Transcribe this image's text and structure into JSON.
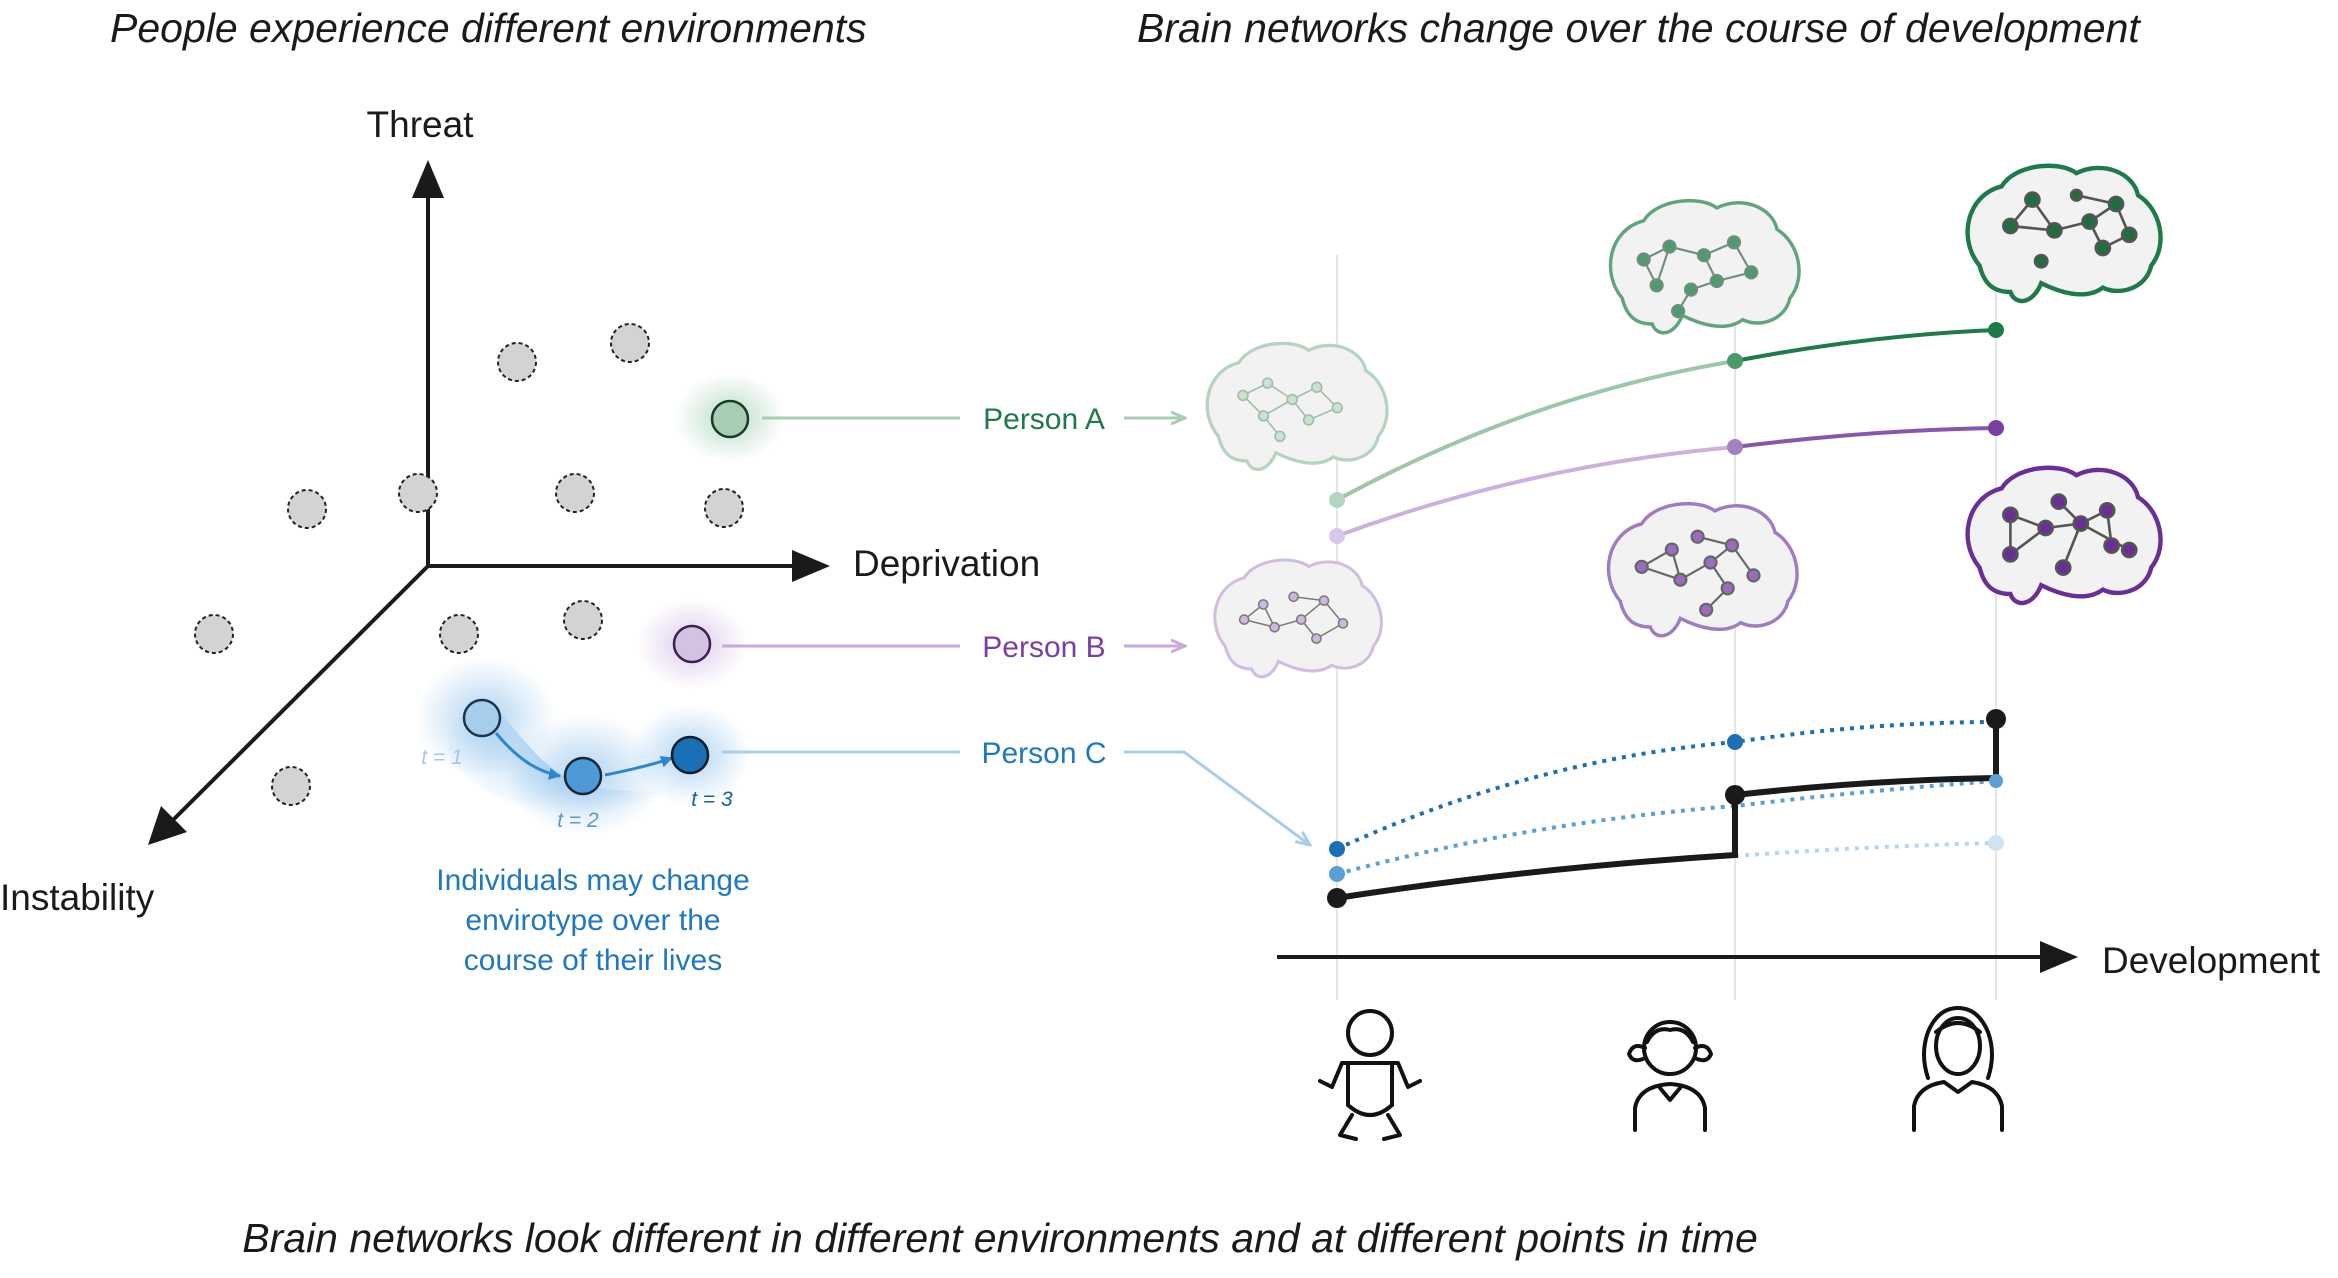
{
  "headings": {
    "left": "People experience different environments",
    "right": "Brain networks change over the course of development",
    "bottom": "Brain networks look different in different environments and at different points in time"
  },
  "axes": {
    "vertical": "Threat",
    "horizontal": "Deprivation",
    "depth": "Instability",
    "timeline": "Development"
  },
  "persons": [
    {
      "label": "Person A",
      "color": "#1e7a48"
    },
    {
      "label": "Person B",
      "color": "#7a3fa3"
    },
    {
      "label": "Person C",
      "color": "#1f78c1"
    }
  ],
  "time_labels": [
    "t = 1",
    "t = 2",
    "t = 3"
  ],
  "note": [
    "Individuals may change",
    "envirotype over the",
    "course of their lives"
  ],
  "stages": [
    "infant-icon",
    "child-icon",
    "adult-icon"
  ],
  "colors": {
    "green": "#1e7a48",
    "purple": "#7a3fa3",
    "blue": "#1f78c1",
    "grey_point": "#d3d3d3",
    "axis": "#1a1a1a"
  }
}
